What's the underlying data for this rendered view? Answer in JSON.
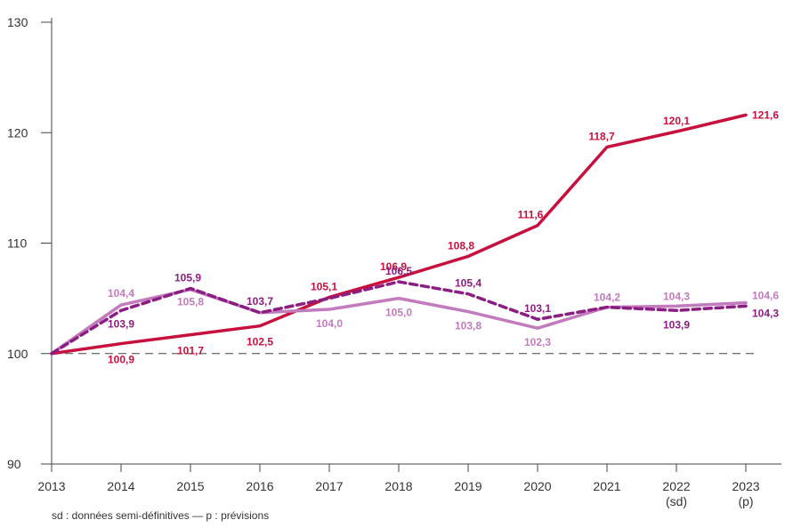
{
  "chart_data": {
    "type": "line",
    "x": [
      "2013",
      "2014",
      "2015",
      "2016",
      "2017",
      "2018",
      "2019",
      "2020",
      "2021",
      "2022",
      "2023"
    ],
    "x_sublabels": [
      "",
      "",
      "",
      "",
      "",
      "",
      "",
      "",
      "",
      "(sd)",
      "(p)"
    ],
    "ylim": [
      90,
      130
    ],
    "yticks": [
      90,
      100,
      110,
      120,
      130
    ],
    "reference_line": 100,
    "series": [
      {
        "color": "#c8103e",
        "dash": "solid",
        "values": [
          100,
          100.9,
          101.7,
          102.5,
          105.1,
          106.9,
          108.8,
          111.6,
          118.7,
          120.1,
          121.6
        ],
        "labels": [
          "",
          "100,9",
          "101,7",
          "102,5",
          "105,1",
          "106,9",
          "108,8",
          "111,6",
          "118,7",
          "120,1",
          "121,6"
        ]
      },
      {
        "color": "#c27bbd",
        "dash": "solid",
        "values": [
          100,
          104.4,
          105.8,
          103.7,
          104.0,
          105.0,
          103.8,
          102.3,
          104.2,
          104.3,
          104.6
        ],
        "labels": [
          "",
          "104,4",
          "105,8",
          "",
          "104,0",
          "105,0",
          "103,8",
          "102,3",
          "104,2",
          "104,3",
          "104,6"
        ]
      },
      {
        "color": "#8c1d82",
        "dash": "dashed",
        "values": [
          100,
          103.9,
          105.9,
          103.7,
          105.0,
          106.5,
          105.4,
          103.1,
          104.2,
          103.9,
          104.3
        ],
        "labels": [
          "",
          "103,9",
          "105,9",
          "103,7",
          "",
          "106,5",
          "105,4",
          "103,1",
          "",
          "103,9",
          "104,3"
        ]
      }
    ]
  },
  "footnote": "sd : données semi-définitives — p : prévisions"
}
